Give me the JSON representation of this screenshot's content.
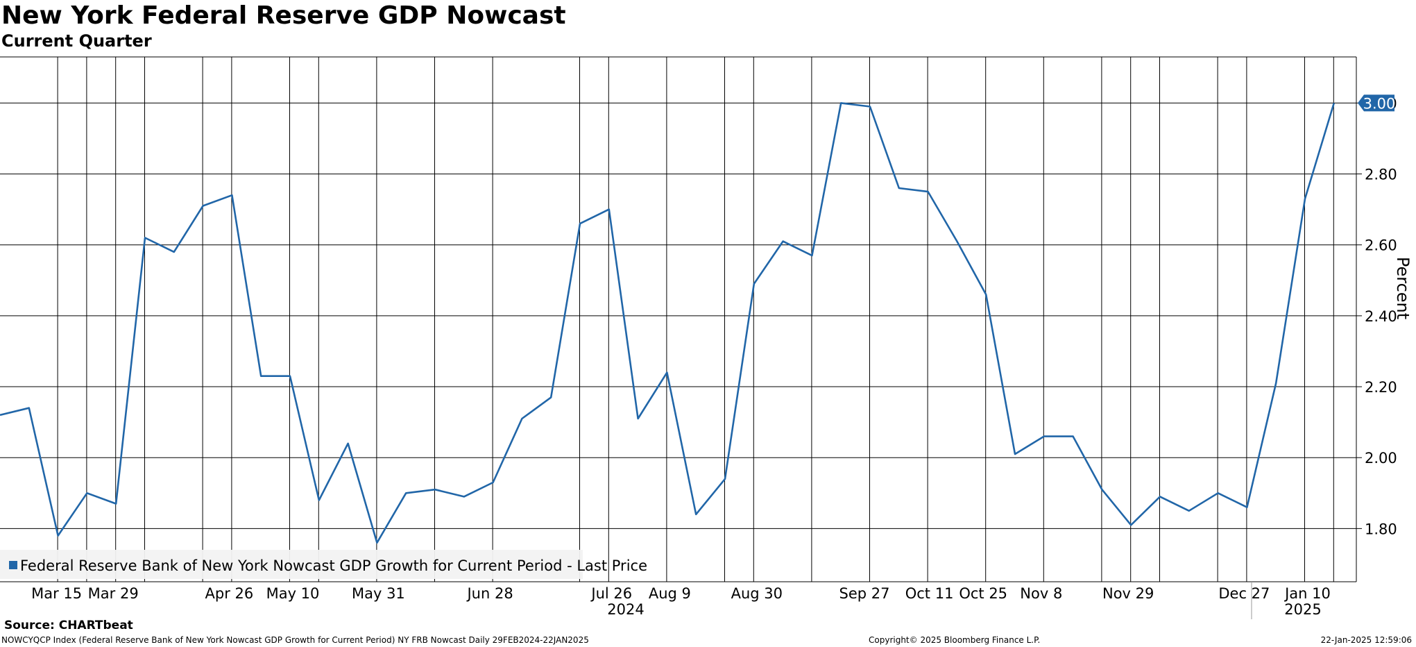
{
  "header": {
    "title": "New York Federal Reserve GDP Nowcast",
    "subtitle": "Current Quarter"
  },
  "footer": {
    "source": "Source: CHARTbeat",
    "description": "NOWCYQCP Index (Federal Reserve Bank of New York Nowcast GDP Growth for Current Period) NY FRB Nowcast  Daily 29FEB2024-22JAN2025",
    "copyright": "Copyright© 2025 Bloomberg Finance L.P.",
    "timestamp": "22-Jan-2025 12:59:06"
  },
  "chart_data": {
    "type": "line",
    "title": "New York Federal Reserve GDP Nowcast",
    "subtitle": "Current Quarter",
    "ylabel": "Percent",
    "ylim": [
      1.65,
      3.13
    ],
    "yticks": [
      1.8,
      2.0,
      2.2,
      2.4,
      2.6,
      2.8,
      3.0
    ],
    "ytick_labels": [
      "1.80",
      "2.00",
      "2.20",
      "2.40",
      "2.60",
      "2.80",
      "3.00"
    ],
    "grid": true,
    "legend_position": "bottom-left",
    "last_value_label": "3.00",
    "x_tick_labels": [
      "Mar 15",
      "Mar 29",
      "Apr 26",
      "May 10",
      "May 31",
      "Jun 28",
      "Jul 26",
      "Aug 9",
      "Aug 30",
      "Sep 27",
      "Oct 11",
      "Oct 25",
      "Nov 8",
      "Nov 29",
      "Dec 27",
      "Jan 10"
    ],
    "year_labels": [
      "2024",
      "2025"
    ],
    "series": [
      {
        "name": "Federal Reserve Bank of New York Nowcast GDP Growth for Current Period - Last Price",
        "color": "#2166a8",
        "x": [
          "2024-03-01",
          "2024-03-08",
          "2024-03-15",
          "2024-03-22",
          "2024-03-29",
          "2024-04-05",
          "2024-04-12",
          "2024-04-19",
          "2024-04-26",
          "2024-05-03",
          "2024-05-10",
          "2024-05-17",
          "2024-05-24",
          "2024-05-31",
          "2024-06-07",
          "2024-06-14",
          "2024-06-21",
          "2024-06-28",
          "2024-07-05",
          "2024-07-12",
          "2024-07-19",
          "2024-07-26",
          "2024-08-02",
          "2024-08-09",
          "2024-08-16",
          "2024-08-23",
          "2024-08-30",
          "2024-09-06",
          "2024-09-13",
          "2024-09-20",
          "2024-09-27",
          "2024-10-04",
          "2024-10-11",
          "2024-10-18",
          "2024-10-25",
          "2024-11-01",
          "2024-11-08",
          "2024-11-15",
          "2024-11-22",
          "2024-11-29",
          "2024-12-06",
          "2024-12-13",
          "2024-12-20",
          "2024-12-27",
          "2025-01-03",
          "2025-01-10",
          "2025-01-17"
        ],
        "values": [
          2.12,
          2.14,
          1.78,
          1.9,
          1.87,
          2.62,
          2.58,
          2.71,
          2.74,
          2.23,
          2.23,
          1.88,
          2.04,
          1.76,
          1.9,
          1.91,
          1.89,
          1.93,
          2.11,
          2.17,
          2.66,
          2.7,
          2.11,
          2.24,
          1.84,
          1.94,
          2.49,
          2.61,
          2.57,
          3.0,
          2.99,
          2.76,
          2.75,
          2.61,
          2.46,
          2.01,
          2.06,
          2.06,
          1.91,
          1.81,
          1.89,
          1.85,
          1.9,
          1.86,
          2.21,
          2.73,
          3.0
        ]
      }
    ]
  }
}
